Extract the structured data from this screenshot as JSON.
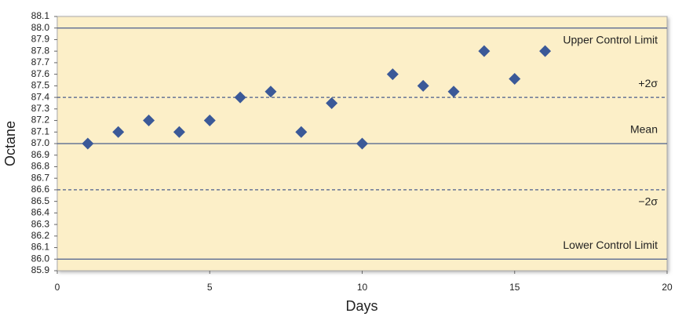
{
  "chart_data": {
    "type": "scatter",
    "x_label": "Days",
    "y_label": "Octane",
    "series": [
      {
        "color": "#3b5998",
        "x": [
          1,
          2,
          3,
          4,
          5,
          6,
          7,
          8,
          9,
          10,
          11,
          12,
          13,
          14,
          15,
          16
        ],
        "values": [
          87.0,
          87.1,
          87.2,
          87.1,
          87.2,
          87.4,
          87.45,
          87.1,
          87.35,
          87.0,
          87.6,
          87.5,
          87.45,
          87.8,
          87.56,
          87.8
        ]
      }
    ],
    "xlim": [
      0,
      20
    ],
    "xticks": [
      0,
      5,
      10,
      15,
      20
    ],
    "ylim": [
      85.9,
      88.1
    ],
    "yticks": [
      85.9,
      {
        "value": 86.0,
        "label": "86.0"
      },
      86.1,
      86.2,
      86.3,
      86.4,
      86.5,
      86.6,
      86.7,
      86.8,
      86.9,
      {
        "value": 87.0,
        "label": "87.0"
      },
      87.1,
      87.2,
      87.3,
      87.4,
      87.5,
      87.6,
      87.7,
      87.8,
      87.9,
      {
        "value": 88.0,
        "label": "88.0"
      },
      88.1
    ],
    "reference_lines": [
      {
        "value": 88.0,
        "label": "Upper Control Limit",
        "style": "solid",
        "label_position": "below"
      },
      {
        "value": 87.4,
        "label": "+2σ",
        "style": "dashed",
        "label_position": "above"
      },
      {
        "value": 87.0,
        "label": "Mean",
        "style": "solid",
        "label_position": "above"
      },
      {
        "value": 86.6,
        "label": "−2σ",
        "style": "dashed",
        "label_position": "below"
      },
      {
        "value": 86.0,
        "label": "Lower Control Limit",
        "style": "solid",
        "label_position": "above"
      }
    ],
    "reference_color": "#4a5d8c",
    "plot_background": "#fcefc8"
  }
}
